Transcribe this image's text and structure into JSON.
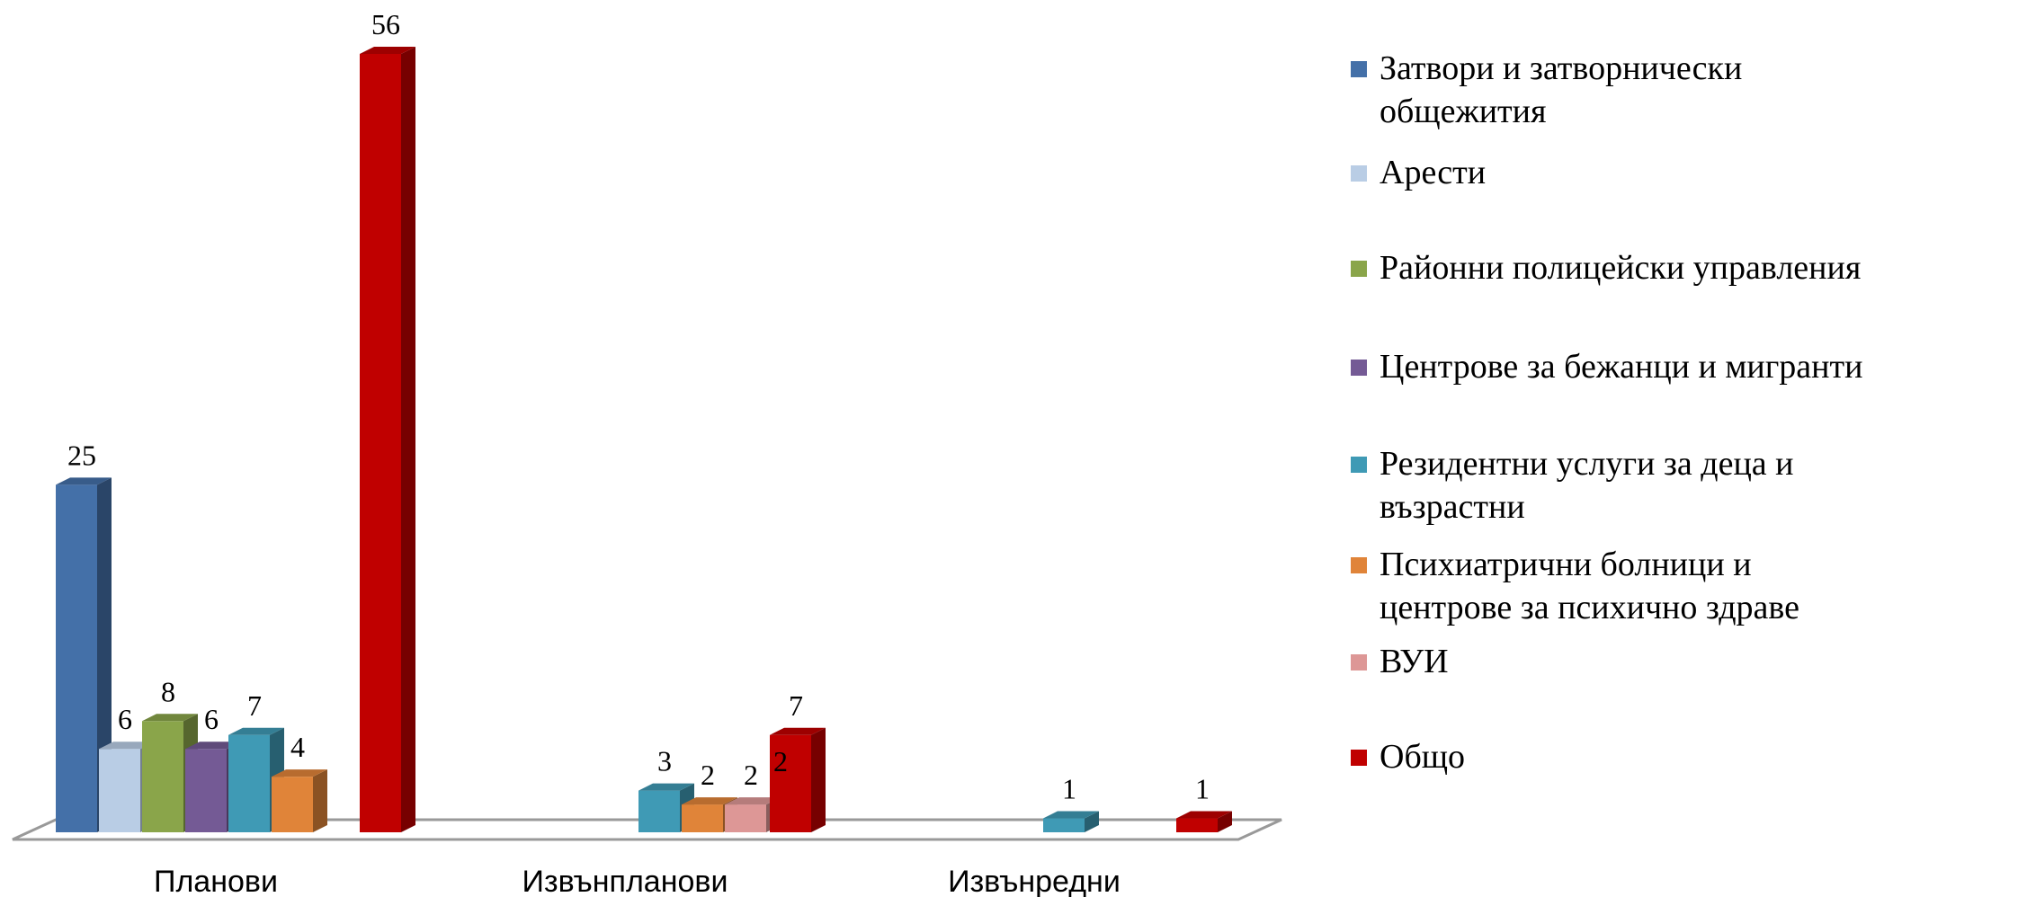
{
  "chart_data": {
    "type": "bar",
    "categories": [
      "Планови",
      "Извънпланови",
      "Извънредни"
    ],
    "series": [
      {
        "name": "Затвори и затворнически общежития",
        "color": "#4470a8",
        "values": [
          25,
          null,
          null
        ]
      },
      {
        "name": "Арести",
        "color": "#b9cde5",
        "values": [
          6,
          null,
          null
        ]
      },
      {
        "name": "Районни полицейски управления",
        "color": "#8aa54a",
        "values": [
          8,
          null,
          null
        ]
      },
      {
        "name": "Центрове за бежанци и мигранти",
        "color": "#745a95",
        "values": [
          6,
          null,
          null
        ]
      },
      {
        "name": "Резидентни услуги за деца и възрастни",
        "color": "#3f9ab5",
        "values": [
          7,
          3,
          1
        ]
      },
      {
        "name": "Психиатрични болници и центрове за психично здраве",
        "color": "#e08439",
        "values": [
          4,
          2,
          null
        ]
      },
      {
        "name": "ВУИ",
        "color": "#dd9796",
        "values": [
          null,
          2,
          null
        ]
      },
      {
        "name": "Общо",
        "color": "#c00000",
        "values": [
          56,
          7,
          1
        ]
      }
    ],
    "legend_lines": [
      "Затвори и затворнически\nобщежития",
      "Арести",
      "Районни полицейски управления",
      "Центрове за бежанци и мигранти",
      "Резидентни услуги за деца и\nвъзрастни",
      "Психиатрични болници и\nцентрове за психично здраве",
      "ВУИ",
      "Общо"
    ],
    "ylim": [
      0,
      56
    ],
    "grid": false,
    "legend_position": "right",
    "title": "",
    "xlabel": "",
    "ylabel": ""
  }
}
